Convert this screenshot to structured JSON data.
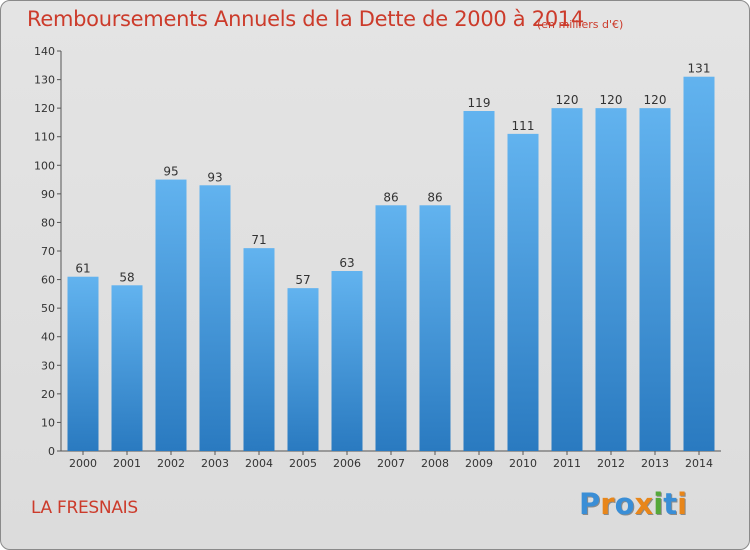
{
  "chart_data": {
    "type": "bar",
    "title": "Remboursements Annuels de la Dette de 2000 à 2014",
    "subtitle": "(en milliers d'€)",
    "categories": [
      "2000",
      "2001",
      "2002",
      "2003",
      "2004",
      "2005",
      "2006",
      "2007",
      "2008",
      "2009",
      "2010",
      "2011",
      "2012",
      "2013",
      "2014"
    ],
    "values": [
      61,
      58,
      95,
      93,
      71,
      57,
      63,
      86,
      86,
      119,
      111,
      120,
      120,
      120,
      131
    ],
    "ylim": [
      0,
      140
    ],
    "yticks": [
      0,
      10,
      20,
      30,
      40,
      50,
      60,
      70,
      80,
      90,
      100,
      110,
      120,
      130,
      140
    ],
    "xlabel": "",
    "ylabel": "",
    "grid": false
  },
  "footer": {
    "place": "LA FRESNAIS",
    "logo_letters": [
      "P",
      "r",
      "o",
      "x",
      "i",
      "t",
      "i"
    ]
  },
  "colors": {
    "title": "#cc3b2b",
    "bar_light": "#62b3ef",
    "bar_dark": "#2a7ac0",
    "logo": [
      "#3a8ed6",
      "#e8861a",
      "#3a8ed6",
      "#e8861a",
      "#55a83a",
      "#3a8ed6",
      "#e8861a"
    ]
  }
}
